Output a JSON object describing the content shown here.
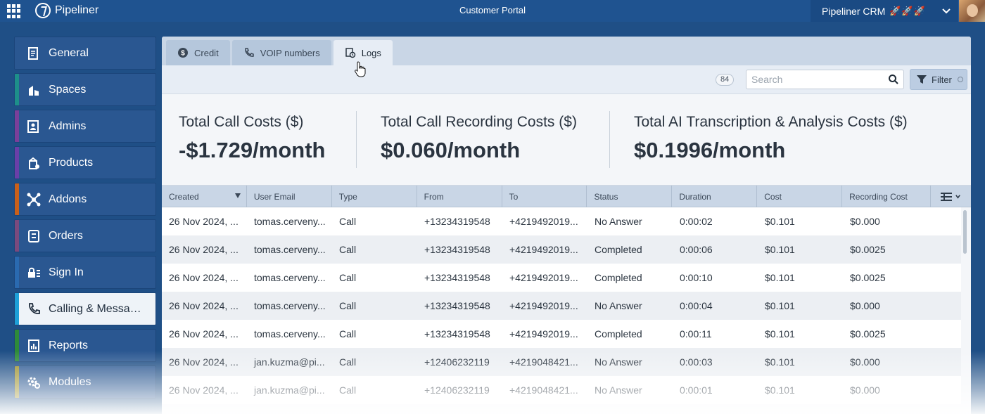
{
  "topbar": {
    "brand": "Pipeliner",
    "portal_title": "Customer Portal",
    "account_name": "Pipeliner CRM",
    "account_badges": "🚀🚀🚀"
  },
  "sidebar": {
    "items": [
      {
        "label": "General",
        "accent": "#2a5791",
        "icon": "document-icon"
      },
      {
        "label": "Spaces",
        "accent": "#1d8f8a",
        "icon": "spaces-icon"
      },
      {
        "label": "Admins",
        "accent": "#7a3f9a",
        "icon": "admins-icon"
      },
      {
        "label": "Products",
        "accent": "#6a3fa8",
        "icon": "products-icon"
      },
      {
        "label": "Addons",
        "accent": "#c8601a",
        "icon": "addons-icon"
      },
      {
        "label": "Orders",
        "accent": "#7a4a7e",
        "icon": "orders-icon"
      },
      {
        "label": "Sign In",
        "accent": "#2a6ab0",
        "icon": "lock-icon"
      },
      {
        "label": "Calling & Messaging",
        "accent": "#1ea0d8",
        "icon": "phone-icon"
      },
      {
        "label": "Reports",
        "accent": "#2e8a3a",
        "icon": "reports-icon"
      },
      {
        "label": "Modules",
        "accent": "#9a8f2a",
        "icon": "gear-icon"
      }
    ],
    "active_index": 7
  },
  "tabs": [
    {
      "label": "Credit",
      "icon": "dollar-icon"
    },
    {
      "label": "VOIP numbers",
      "icon": "phone-icon"
    },
    {
      "label": "Logs",
      "icon": "logs-icon"
    }
  ],
  "toolbar": {
    "count": "84",
    "search_placeholder": "Search",
    "filter_label": "Filter"
  },
  "stats": [
    {
      "label": "Total Call Costs ($)",
      "value": "-$1.729/month"
    },
    {
      "label": "Total Call Recording Costs ($)",
      "value": "$0.060/month"
    },
    {
      "label": "Total AI Transcription & Analysis Costs ($)",
      "value": "$0.1996/month"
    }
  ],
  "table": {
    "columns": [
      "Created",
      "User Email",
      "Type",
      "From",
      "To",
      "Status",
      "Duration",
      "Cost",
      "Recording Cost"
    ],
    "rows": [
      [
        "26 Nov 2024, ...",
        "tomas.cerveny...",
        "Call",
        "+13234319548",
        "+4219492019...",
        "No Answer",
        "0:00:02",
        "$0.101",
        "$0.000"
      ],
      [
        "26 Nov 2024, ...",
        "tomas.cerveny...",
        "Call",
        "+13234319548",
        "+4219492019...",
        "Completed",
        "0:00:06",
        "$0.101",
        "$0.0025"
      ],
      [
        "26 Nov 2024, ...",
        "tomas.cerveny...",
        "Call",
        "+13234319548",
        "+4219492019...",
        "Completed",
        "0:00:10",
        "$0.101",
        "$0.0025"
      ],
      [
        "26 Nov 2024, ...",
        "tomas.cerveny...",
        "Call",
        "+13234319548",
        "+4219492019...",
        "No Answer",
        "0:00:04",
        "$0.101",
        "$0.000"
      ],
      [
        "26 Nov 2024, ...",
        "tomas.cerveny...",
        "Call",
        "+13234319548",
        "+4219492019...",
        "Completed",
        "0:00:11",
        "$0.101",
        "$0.0025"
      ],
      [
        "26 Nov 2024, ...",
        "jan.kuzma@pi...",
        "Call",
        "+12406232119",
        "+4219048421...",
        "No Answer",
        "0:00:03",
        "$0.101",
        "$0.000"
      ],
      [
        "26 Nov 2024, ...",
        "jan.kuzma@pi...",
        "Call",
        "+12406232119",
        "+4219048421...",
        "No Answer",
        "0:00:01",
        "$0.101",
        "$0.000"
      ]
    ]
  }
}
